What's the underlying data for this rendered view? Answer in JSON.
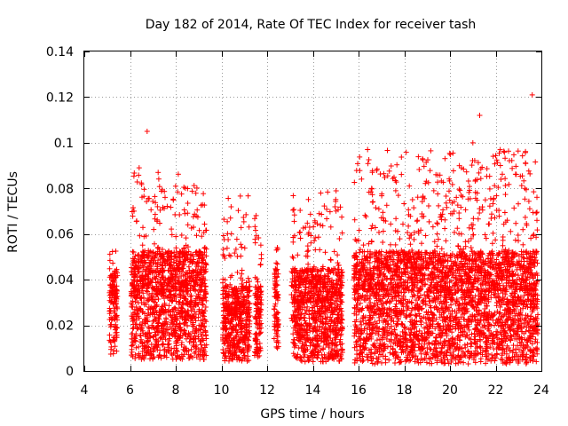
{
  "chart_data": {
    "type": "scatter",
    "title": "Day 182 of 2014, Rate Of TEC Index for receiver tash",
    "xlabel": "GPS time / hours",
    "ylabel": "ROTI / TECUs",
    "xlim": [
      4,
      24
    ],
    "ylim": [
      0,
      0.14
    ],
    "xticks": [
      4,
      6,
      8,
      10,
      12,
      14,
      16,
      18,
      20,
      22,
      24
    ],
    "yticks": [
      0,
      0.02,
      0.04,
      0.06,
      0.08,
      0.1,
      0.12,
      0.14
    ],
    "xtick_labels": [
      "4",
      "6",
      "8",
      "10",
      "12",
      "14",
      "16",
      "18",
      "20",
      "22",
      "24"
    ],
    "ytick_labels": [
      "0",
      "0.02",
      "0.04",
      "0.06",
      "0.08",
      "0.1",
      "0.12",
      "0.14"
    ],
    "grid": true,
    "marker": "+",
    "color": "#ff0000",
    "series": [
      {
        "name": "ROTI",
        "data_segments": [
          {
            "x_start": 5.1,
            "x_end": 5.45,
            "y_min": 0.007,
            "y_typ": 0.03,
            "y_max": 0.053
          },
          {
            "x_start": 6.05,
            "x_end": 9.35,
            "y_min": 0.005,
            "y_typ": 0.035,
            "y_max": 0.087
          },
          {
            "x_start": 10.05,
            "x_end": 11.25,
            "y_min": 0.004,
            "y_typ": 0.025,
            "y_max": 0.077
          },
          {
            "x_start": 11.45,
            "x_end": 11.75,
            "y_min": 0.005,
            "y_typ": 0.025,
            "y_max": 0.071
          },
          {
            "x_start": 12.3,
            "x_end": 12.5,
            "y_min": 0.01,
            "y_typ": 0.03,
            "y_max": 0.057
          },
          {
            "x_start": 13.05,
            "x_end": 15.3,
            "y_min": 0.004,
            "y_typ": 0.03,
            "y_max": 0.08
          },
          {
            "x_start": 15.8,
            "x_end": 23.85,
            "y_min": 0.003,
            "y_typ": 0.035,
            "y_max": 0.098
          }
        ],
        "outliers": [
          {
            "x": 6.75,
            "y": 0.105
          },
          {
            "x": 6.4,
            "y": 0.089
          },
          {
            "x": 18.8,
            "y": 0.093
          },
          {
            "x": 21.3,
            "y": 0.112
          },
          {
            "x": 21.0,
            "y": 0.1
          },
          {
            "x": 22.2,
            "y": 0.097
          },
          {
            "x": 23.6,
            "y": 0.121
          }
        ]
      }
    ]
  }
}
